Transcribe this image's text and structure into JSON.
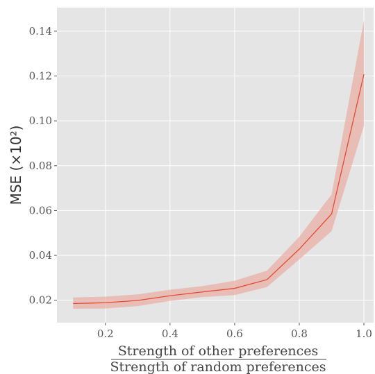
{
  "chart_data": {
    "type": "line",
    "title": "",
    "xlabel_numerator": "Strength of other preferences",
    "xlabel_denominator": "Strength of random preferences",
    "ylabel": "MSE (×10²)",
    "xlim": [
      0.05,
      1.03
    ],
    "ylim": [
      0.01,
      0.1505
    ],
    "x_ticks": [
      0.2,
      0.4,
      0.6,
      0.8,
      1.0
    ],
    "x_tick_labels": [
      "0.2",
      "0.4",
      "0.6",
      "0.8",
      "1.0"
    ],
    "y_ticks": [
      0.02,
      0.04,
      0.06,
      0.08,
      0.1,
      0.12,
      0.14
    ],
    "y_tick_labels": [
      "0.02",
      "0.04",
      "0.06",
      "0.08",
      "0.10",
      "0.12",
      "0.14"
    ],
    "grid": true,
    "series": [
      {
        "x": [
          0.1,
          0.2,
          0.3,
          0.4,
          0.5,
          0.6,
          0.7,
          0.8,
          0.9,
          1.0
        ],
        "values": [
          0.0185,
          0.0189,
          0.0199,
          0.022,
          0.0237,
          0.0253,
          0.0292,
          0.0428,
          0.0585,
          0.1208
        ],
        "lower": [
          0.0162,
          0.0163,
          0.0174,
          0.0197,
          0.0214,
          0.0223,
          0.0259,
          0.0382,
          0.0508,
          0.0978
        ],
        "upper": [
          0.0212,
          0.0216,
          0.0226,
          0.0247,
          0.0263,
          0.0287,
          0.0332,
          0.0483,
          0.0672,
          0.1448
        ]
      }
    ],
    "colors": {
      "plot_background": "#e5e5e5",
      "grid": "#ffffff",
      "line": "#e24a33",
      "band": "#e8a89c"
    }
  }
}
